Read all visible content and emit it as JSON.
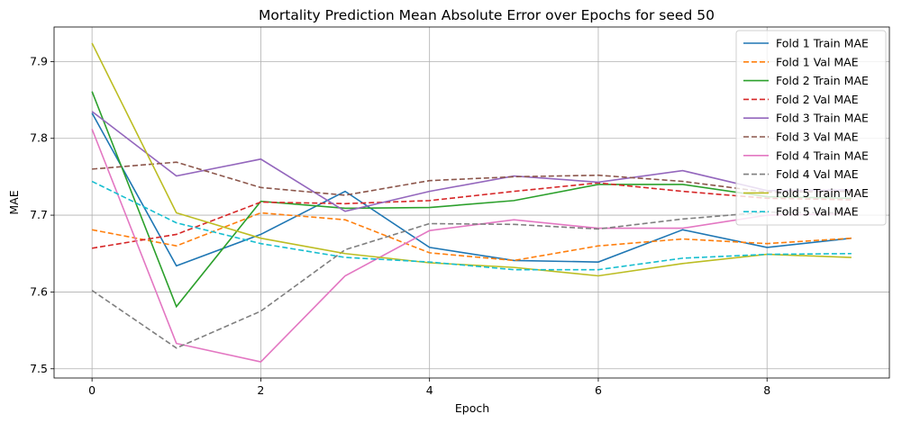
{
  "chart_data": {
    "type": "line",
    "title": "Mortality Prediction Mean Absolute Error over Epochs for seed 50",
    "xlabel": "Epoch",
    "ylabel": "MAE",
    "xlim": [
      -0.45,
      9.45
    ],
    "ylim": [
      7.488,
      7.945
    ],
    "xticks": [
      0,
      2,
      4,
      6,
      8
    ],
    "yticks": [
      7.5,
      7.6,
      7.7,
      7.8,
      7.9
    ],
    "grid": true,
    "legend_position": "top-right",
    "x": [
      0,
      1,
      2,
      3,
      4,
      5,
      6,
      7,
      8,
      9
    ],
    "series": [
      {
        "name": "Fold 1 Train MAE",
        "color": "#1f77b4",
        "dashed": false,
        "values": [
          7.833,
          7.634,
          7.675,
          7.731,
          7.658,
          7.641,
          7.639,
          7.681,
          7.658,
          7.67
        ]
      },
      {
        "name": "Fold 1 Val MAE",
        "color": "#ff7f0e",
        "dashed": true,
        "values": [
          7.681,
          7.66,
          7.703,
          7.694,
          7.651,
          7.641,
          7.66,
          7.669,
          7.663,
          7.67
        ]
      },
      {
        "name": "Fold 2 Train MAE",
        "color": "#2ca02c",
        "dashed": false,
        "values": [
          7.861,
          7.581,
          7.718,
          7.709,
          7.71,
          7.719,
          7.74,
          7.74,
          7.724,
          7.722
        ]
      },
      {
        "name": "Fold 2 Val MAE",
        "color": "#d62728",
        "dashed": true,
        "values": [
          7.657,
          7.675,
          7.717,
          7.715,
          7.719,
          7.731,
          7.742,
          7.731,
          7.722,
          7.72
        ]
      },
      {
        "name": "Fold 3 Train MAE",
        "color": "#9467bd",
        "dashed": false,
        "values": [
          7.835,
          7.751,
          7.773,
          7.705,
          7.731,
          7.751,
          7.743,
          7.758,
          7.732,
          7.733
        ]
      },
      {
        "name": "Fold 3 Val MAE",
        "color": "#8c564b",
        "dashed": true,
        "values": [
          7.76,
          7.769,
          7.736,
          7.726,
          7.745,
          7.75,
          7.752,
          7.744,
          7.73,
          7.731
        ]
      },
      {
        "name": "Fold 4 Train MAE",
        "color": "#e377c2",
        "dashed": false,
        "values": [
          7.812,
          7.533,
          7.509,
          7.621,
          7.68,
          7.694,
          7.683,
          7.683,
          7.7,
          7.702
        ]
      },
      {
        "name": "Fold 4 Val MAE",
        "color": "#7f7f7f",
        "dashed": true,
        "values": [
          7.602,
          7.527,
          7.575,
          7.655,
          7.689,
          7.688,
          7.682,
          7.695,
          7.704,
          7.703
        ]
      },
      {
        "name": "Fold 5 Train MAE",
        "color": "#bcbd22",
        "dashed": false,
        "values": [
          7.924,
          7.703,
          7.67,
          7.65,
          7.638,
          7.632,
          7.621,
          7.637,
          7.649,
          7.645
        ]
      },
      {
        "name": "Fold 5 Val MAE",
        "color": "#17becf",
        "dashed": true,
        "values": [
          7.744,
          7.69,
          7.663,
          7.645,
          7.639,
          7.629,
          7.629,
          7.644,
          7.649,
          7.65
        ]
      }
    ]
  }
}
